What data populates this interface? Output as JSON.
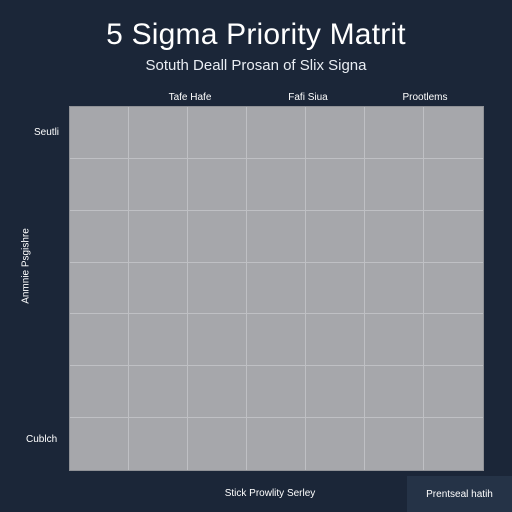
{
  "header": {
    "title": "5 Sigma Priority Matrit",
    "subtitle": "Sotuth Deall Prosan of Slix Signa"
  },
  "columns": [
    "Tafe Hafe",
    "Fafi Siua",
    "Prootlems"
  ],
  "rows": [
    "Seutli",
    "Cublch"
  ],
  "axes": {
    "y_label": "Anmnie Psgishre",
    "x_label": "Stick Prowlity Serley"
  },
  "matrix": {
    "rows": 7,
    "columns": 7,
    "fill_color": "#a6a7ab",
    "grid_line_color": "#bfc0c4"
  },
  "footer": {
    "note": "Prentseal hatih"
  },
  "colors": {
    "background": "#1b2638",
    "text": "#ffffff",
    "footer_box": "#253347"
  }
}
